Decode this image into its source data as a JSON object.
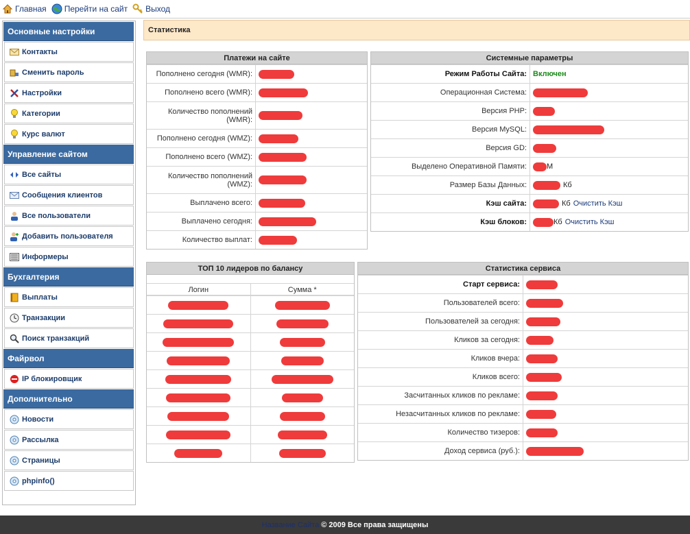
{
  "topnav": {
    "home": "Главная",
    "site": "Перейти на сайт",
    "logout": "Выход"
  },
  "sidebar": {
    "sections": [
      {
        "title": "Основные настройки",
        "items": [
          {
            "label": "Контакты",
            "icon": "envelope-icon"
          },
          {
            "label": "Сменить пароль",
            "icon": "key-icon"
          },
          {
            "label": "Настройки",
            "icon": "tools-icon"
          },
          {
            "label": "Категории",
            "icon": "bulb-icon"
          },
          {
            "label": "Курс валют",
            "icon": "bulb-icon"
          }
        ]
      },
      {
        "title": "Управление сайтом",
        "items": [
          {
            "label": "Все сайты",
            "icon": "arrows-icon"
          },
          {
            "label": "Сообщения клиентов",
            "icon": "envelope-icon"
          },
          {
            "label": "Все пользователи",
            "icon": "users-icon"
          },
          {
            "label": "Добавить пользователя",
            "icon": "user-add-icon"
          },
          {
            "label": "Информеры",
            "icon": "list-icon"
          }
        ]
      },
      {
        "title": "Бухгалтерия",
        "items": [
          {
            "label": "Выплаты",
            "icon": "book-icon"
          },
          {
            "label": "Транзакции",
            "icon": "clock-icon"
          },
          {
            "label": "Поиск транзакций",
            "icon": "magnifier-icon"
          }
        ]
      },
      {
        "title": "Файрвол",
        "items": [
          {
            "label": "IP блокировщик",
            "icon": "stop-icon"
          }
        ]
      },
      {
        "title": "Дополнительно",
        "items": [
          {
            "label": "Новости",
            "icon": "disc-icon"
          },
          {
            "label": "Рассылка",
            "icon": "disc-icon"
          },
          {
            "label": "Страницы",
            "icon": "disc-icon"
          },
          {
            "label": "phpinfo()",
            "icon": "disc-icon"
          }
        ]
      }
    ]
  },
  "page_title": "Статистика",
  "payments": {
    "title": "Платежи на сайте",
    "rows": [
      {
        "label": "Пополнено сегодня (WMR):"
      },
      {
        "label": "Пополнено всего (WMR):"
      },
      {
        "label": "Количество пополнений (WMR):"
      },
      {
        "label": "Пополнено сегодня (WMZ):"
      },
      {
        "label": "Пополнено всего (WMZ):"
      },
      {
        "label": "Количество пополнений (WMZ):"
      },
      {
        "label": "Выплачено всего:"
      },
      {
        "label": "Выплачено сегодня:"
      },
      {
        "label": "Количество выплат:"
      }
    ]
  },
  "system": {
    "title": "Системные параметры",
    "rows": [
      {
        "label": "Режим Работы Сайта:",
        "value": "Включен"
      },
      {
        "label": "Операционная Система:"
      },
      {
        "label": "Версия PHP:"
      },
      {
        "label": "Версия MySQL:"
      },
      {
        "label": "Версия GD:"
      },
      {
        "label": "Выделено Оперативной Памяти:",
        "suffix": "M"
      },
      {
        "label": "Размер Базы Данных:",
        "suffix": "Кб"
      },
      {
        "label": "Кэш сайта:",
        "suffix": "Кб",
        "action": "Очистить Кэш"
      },
      {
        "label": "Кэш блоков:",
        "suffix": "Кб",
        "action": "Очистить Кэш"
      }
    ]
  },
  "top10": {
    "title": "ТОП 10 лидеров по балансу",
    "col_login": "Логин",
    "col_sum": "Сумма *"
  },
  "service": {
    "title": "Статистика сервиса",
    "rows": [
      {
        "label": "Старт сервиса:"
      },
      {
        "label": "Пользователей всего:"
      },
      {
        "label": "Пользователей за сегодня:"
      },
      {
        "label": "Кликов за сегодня:"
      },
      {
        "label": "Кликов вчера:"
      },
      {
        "label": "Кликов всего:"
      },
      {
        "label": "Засчитанных кликов по рекламе:"
      },
      {
        "label": "Незасчитанных кликов по рекламе:"
      },
      {
        "label": "Количество тизеров:"
      },
      {
        "label": "Доход сервиса (руб.):"
      }
    ]
  },
  "footer": {
    "link": "Название Сайта",
    "text": "© 2009 Все права защищены"
  }
}
